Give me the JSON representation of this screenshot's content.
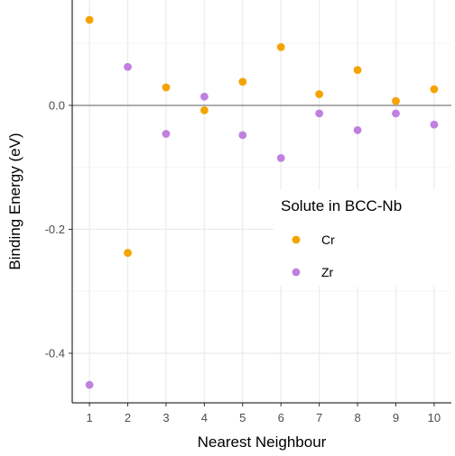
{
  "chart_data": {
    "type": "scatter",
    "xlabel": "Nearest Neighbour",
    "ylabel": "Binding Energy (eV)",
    "x": [
      1,
      2,
      3,
      4,
      5,
      6,
      7,
      8,
      9,
      10
    ],
    "xticks": [
      "1",
      "2",
      "3",
      "4",
      "5",
      "6",
      "7",
      "8",
      "9",
      "10"
    ],
    "xlim": [
      0.55,
      10.45
    ],
    "ylim": [
      -0.48,
      0.17
    ],
    "yticks": [
      {
        "value": 0.0,
        "label": "0.0"
      },
      {
        "value": -0.2,
        "label": "-0.2"
      },
      {
        "value": -0.4,
        "label": "-0.4"
      }
    ],
    "reference_line": 0.0,
    "grid": true,
    "legend": {
      "title": "Solute in BCC-Nb",
      "placement": "right"
    },
    "series": [
      {
        "name": "Cr",
        "color": "#f5a300",
        "values": [
          0.138,
          -0.238,
          0.029,
          -0.008,
          0.038,
          0.094,
          0.018,
          0.057,
          0.007,
          0.026
        ]
      },
      {
        "name": "Zr",
        "color": "#c080e0",
        "values": [
          -0.451,
          0.062,
          -0.046,
          0.014,
          -0.048,
          -0.085,
          -0.013,
          -0.04,
          -0.013,
          -0.031
        ]
      }
    ]
  }
}
